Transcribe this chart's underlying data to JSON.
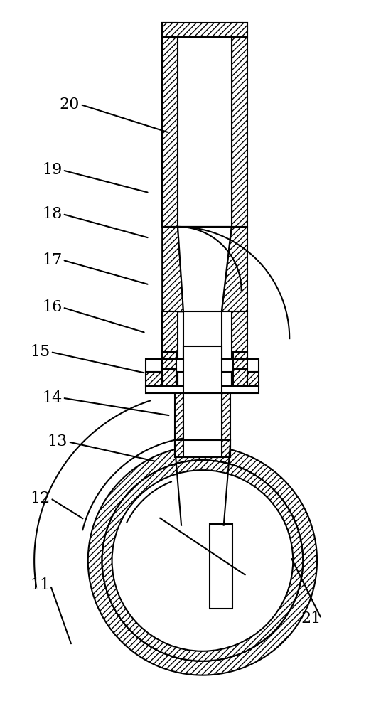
{
  "bg": "#ffffff",
  "lc": "#000000",
  "lw": 1.5,
  "fig_w": 5.29,
  "fig_h": 10.0,
  "dpi": 100,
  "font_size": 16,
  "labels": [
    [
      "20",
      97,
      855,
      238,
      815
    ],
    [
      "19",
      72,
      762,
      210,
      730
    ],
    [
      "18",
      72,
      700,
      210,
      666
    ],
    [
      "17",
      72,
      635,
      210,
      600
    ],
    [
      "16",
      72,
      568,
      205,
      532
    ],
    [
      "15",
      55,
      505,
      205,
      475
    ],
    [
      "14",
      72,
      440,
      240,
      415
    ],
    [
      "13",
      80,
      378,
      220,
      350
    ],
    [
      "12",
      55,
      298,
      118,
      268
    ],
    [
      "11",
      55,
      175,
      100,
      90
    ],
    [
      "21",
      438,
      128,
      410,
      215
    ]
  ]
}
